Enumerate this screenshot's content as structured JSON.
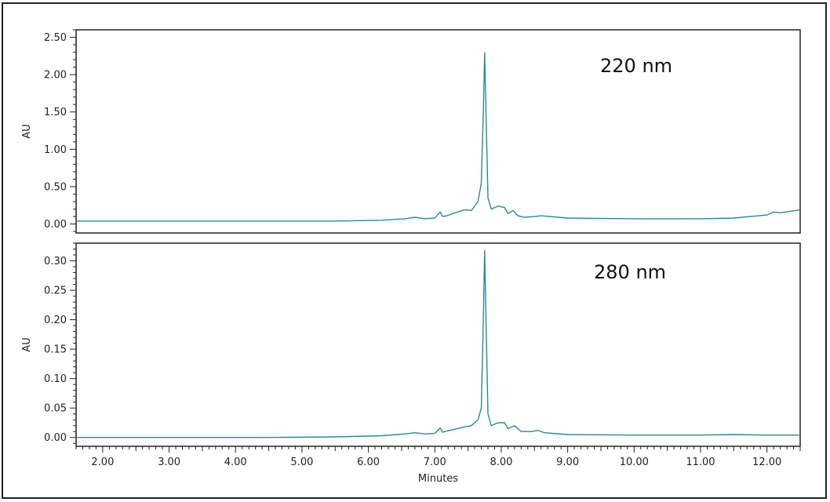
{
  "colors": {
    "trace": "#2a8a9a",
    "axis": "#222222"
  },
  "chart_data": [
    {
      "type": "line",
      "annotation": "220 nm",
      "ylabel": "AU",
      "xlabel": "",
      "xlim": [
        1.6,
        12.5
      ],
      "ylim": [
        -0.12,
        2.6
      ],
      "yticks": [
        0.0,
        0.5,
        1.0,
        1.5,
        2.0,
        2.5
      ],
      "ytick_labels": [
        "0.00",
        "0.50",
        "1.00",
        "1.50",
        "2.00",
        "2.50"
      ],
      "x": [
        1.6,
        2.5,
        3.5,
        4.5,
        5.5,
        6.2,
        6.55,
        6.7,
        6.85,
        7.0,
        7.08,
        7.12,
        7.18,
        7.3,
        7.45,
        7.55,
        7.65,
        7.7,
        7.73,
        7.75,
        7.77,
        7.8,
        7.85,
        7.95,
        8.05,
        8.1,
        8.18,
        8.25,
        8.35,
        8.5,
        8.6,
        9.0,
        10.0,
        11.0,
        11.5,
        12.0,
        12.1,
        12.2,
        12.5
      ],
      "y": [
        0.04,
        0.04,
        0.04,
        0.04,
        0.04,
        0.05,
        0.07,
        0.09,
        0.07,
        0.08,
        0.16,
        0.1,
        0.11,
        0.15,
        0.19,
        0.18,
        0.3,
        0.55,
        1.5,
        2.3,
        1.5,
        0.35,
        0.2,
        0.24,
        0.22,
        0.14,
        0.18,
        0.11,
        0.09,
        0.1,
        0.11,
        0.08,
        0.07,
        0.07,
        0.08,
        0.12,
        0.16,
        0.15,
        0.19
      ]
    },
    {
      "type": "line",
      "annotation": "280 nm",
      "ylabel": "AU",
      "xlabel": "Minutes",
      "xlim": [
        1.6,
        12.5
      ],
      "ylim": [
        -0.015,
        0.33
      ],
      "yticks": [
        0.0,
        0.05,
        0.1,
        0.15,
        0.2,
        0.25,
        0.3
      ],
      "ytick_labels": [
        "0.00",
        "0.05",
        "0.10",
        "0.15",
        "0.20",
        "0.25",
        "0.30"
      ],
      "xticks": [
        2,
        3,
        4,
        5,
        6,
        7,
        8,
        9,
        10,
        11,
        12
      ],
      "xtick_labels": [
        "2.00",
        "3.00",
        "4.00",
        "5.00",
        "6.00",
        "7.00",
        "8.00",
        "9.00",
        "10.00",
        "11.00",
        "12.00"
      ],
      "x": [
        1.6,
        2.5,
        3.5,
        4.5,
        5.5,
        6.2,
        6.55,
        6.7,
        6.85,
        7.0,
        7.08,
        7.12,
        7.18,
        7.3,
        7.45,
        7.55,
        7.65,
        7.7,
        7.73,
        7.75,
        7.77,
        7.8,
        7.85,
        7.95,
        8.05,
        8.1,
        8.2,
        8.3,
        8.45,
        8.55,
        8.65,
        9.0,
        10.0,
        11.0,
        11.5,
        12.0,
        12.5
      ],
      "y": [
        0.0,
        0.0,
        0.0,
        0.0,
        0.001,
        0.003,
        0.006,
        0.008,
        0.006,
        0.007,
        0.016,
        0.009,
        0.011,
        0.014,
        0.018,
        0.02,
        0.03,
        0.05,
        0.2,
        0.318,
        0.2,
        0.04,
        0.02,
        0.025,
        0.025,
        0.015,
        0.02,
        0.01,
        0.01,
        0.012,
        0.008,
        0.005,
        0.004,
        0.004,
        0.005,
        0.004,
        0.004
      ]
    }
  ]
}
